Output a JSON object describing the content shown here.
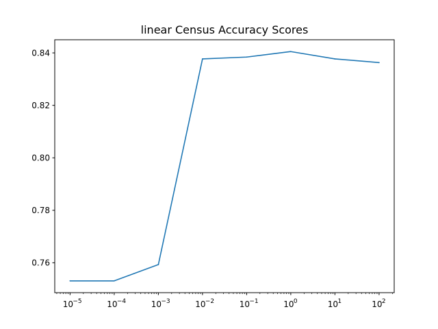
{
  "chart_data": {
    "type": "line",
    "title": "linear Census Accuracy Scores",
    "xlabel": "",
    "ylabel": "",
    "x_scale": "log",
    "x": [
      1e-05,
      0.0001,
      0.001,
      0.01,
      0.1,
      1,
      10,
      100
    ],
    "x_tick_labels": [
      {
        "base": "10",
        "exp": "−5"
      },
      {
        "base": "10",
        "exp": "−4"
      },
      {
        "base": "10",
        "exp": "−3"
      },
      {
        "base": "10",
        "exp": "−2"
      },
      {
        "base": "10",
        "exp": "−1"
      },
      {
        "base": "10",
        "exp": "0"
      },
      {
        "base": "10",
        "exp": "1"
      },
      {
        "base": "10",
        "exp": "2"
      }
    ],
    "y_ticks": [
      "0.76",
      "0.78",
      "0.80",
      "0.82",
      "0.84"
    ],
    "xlim": [
      4.5e-06,
      220
    ],
    "ylim": [
      0.7486,
      0.845
    ],
    "grid": false,
    "series": [
      {
        "color": "#1f77b4",
        "values": [
          0.7531,
          0.7531,
          0.7593,
          0.8377,
          0.8384,
          0.8405,
          0.8377,
          0.8363
        ]
      }
    ]
  }
}
